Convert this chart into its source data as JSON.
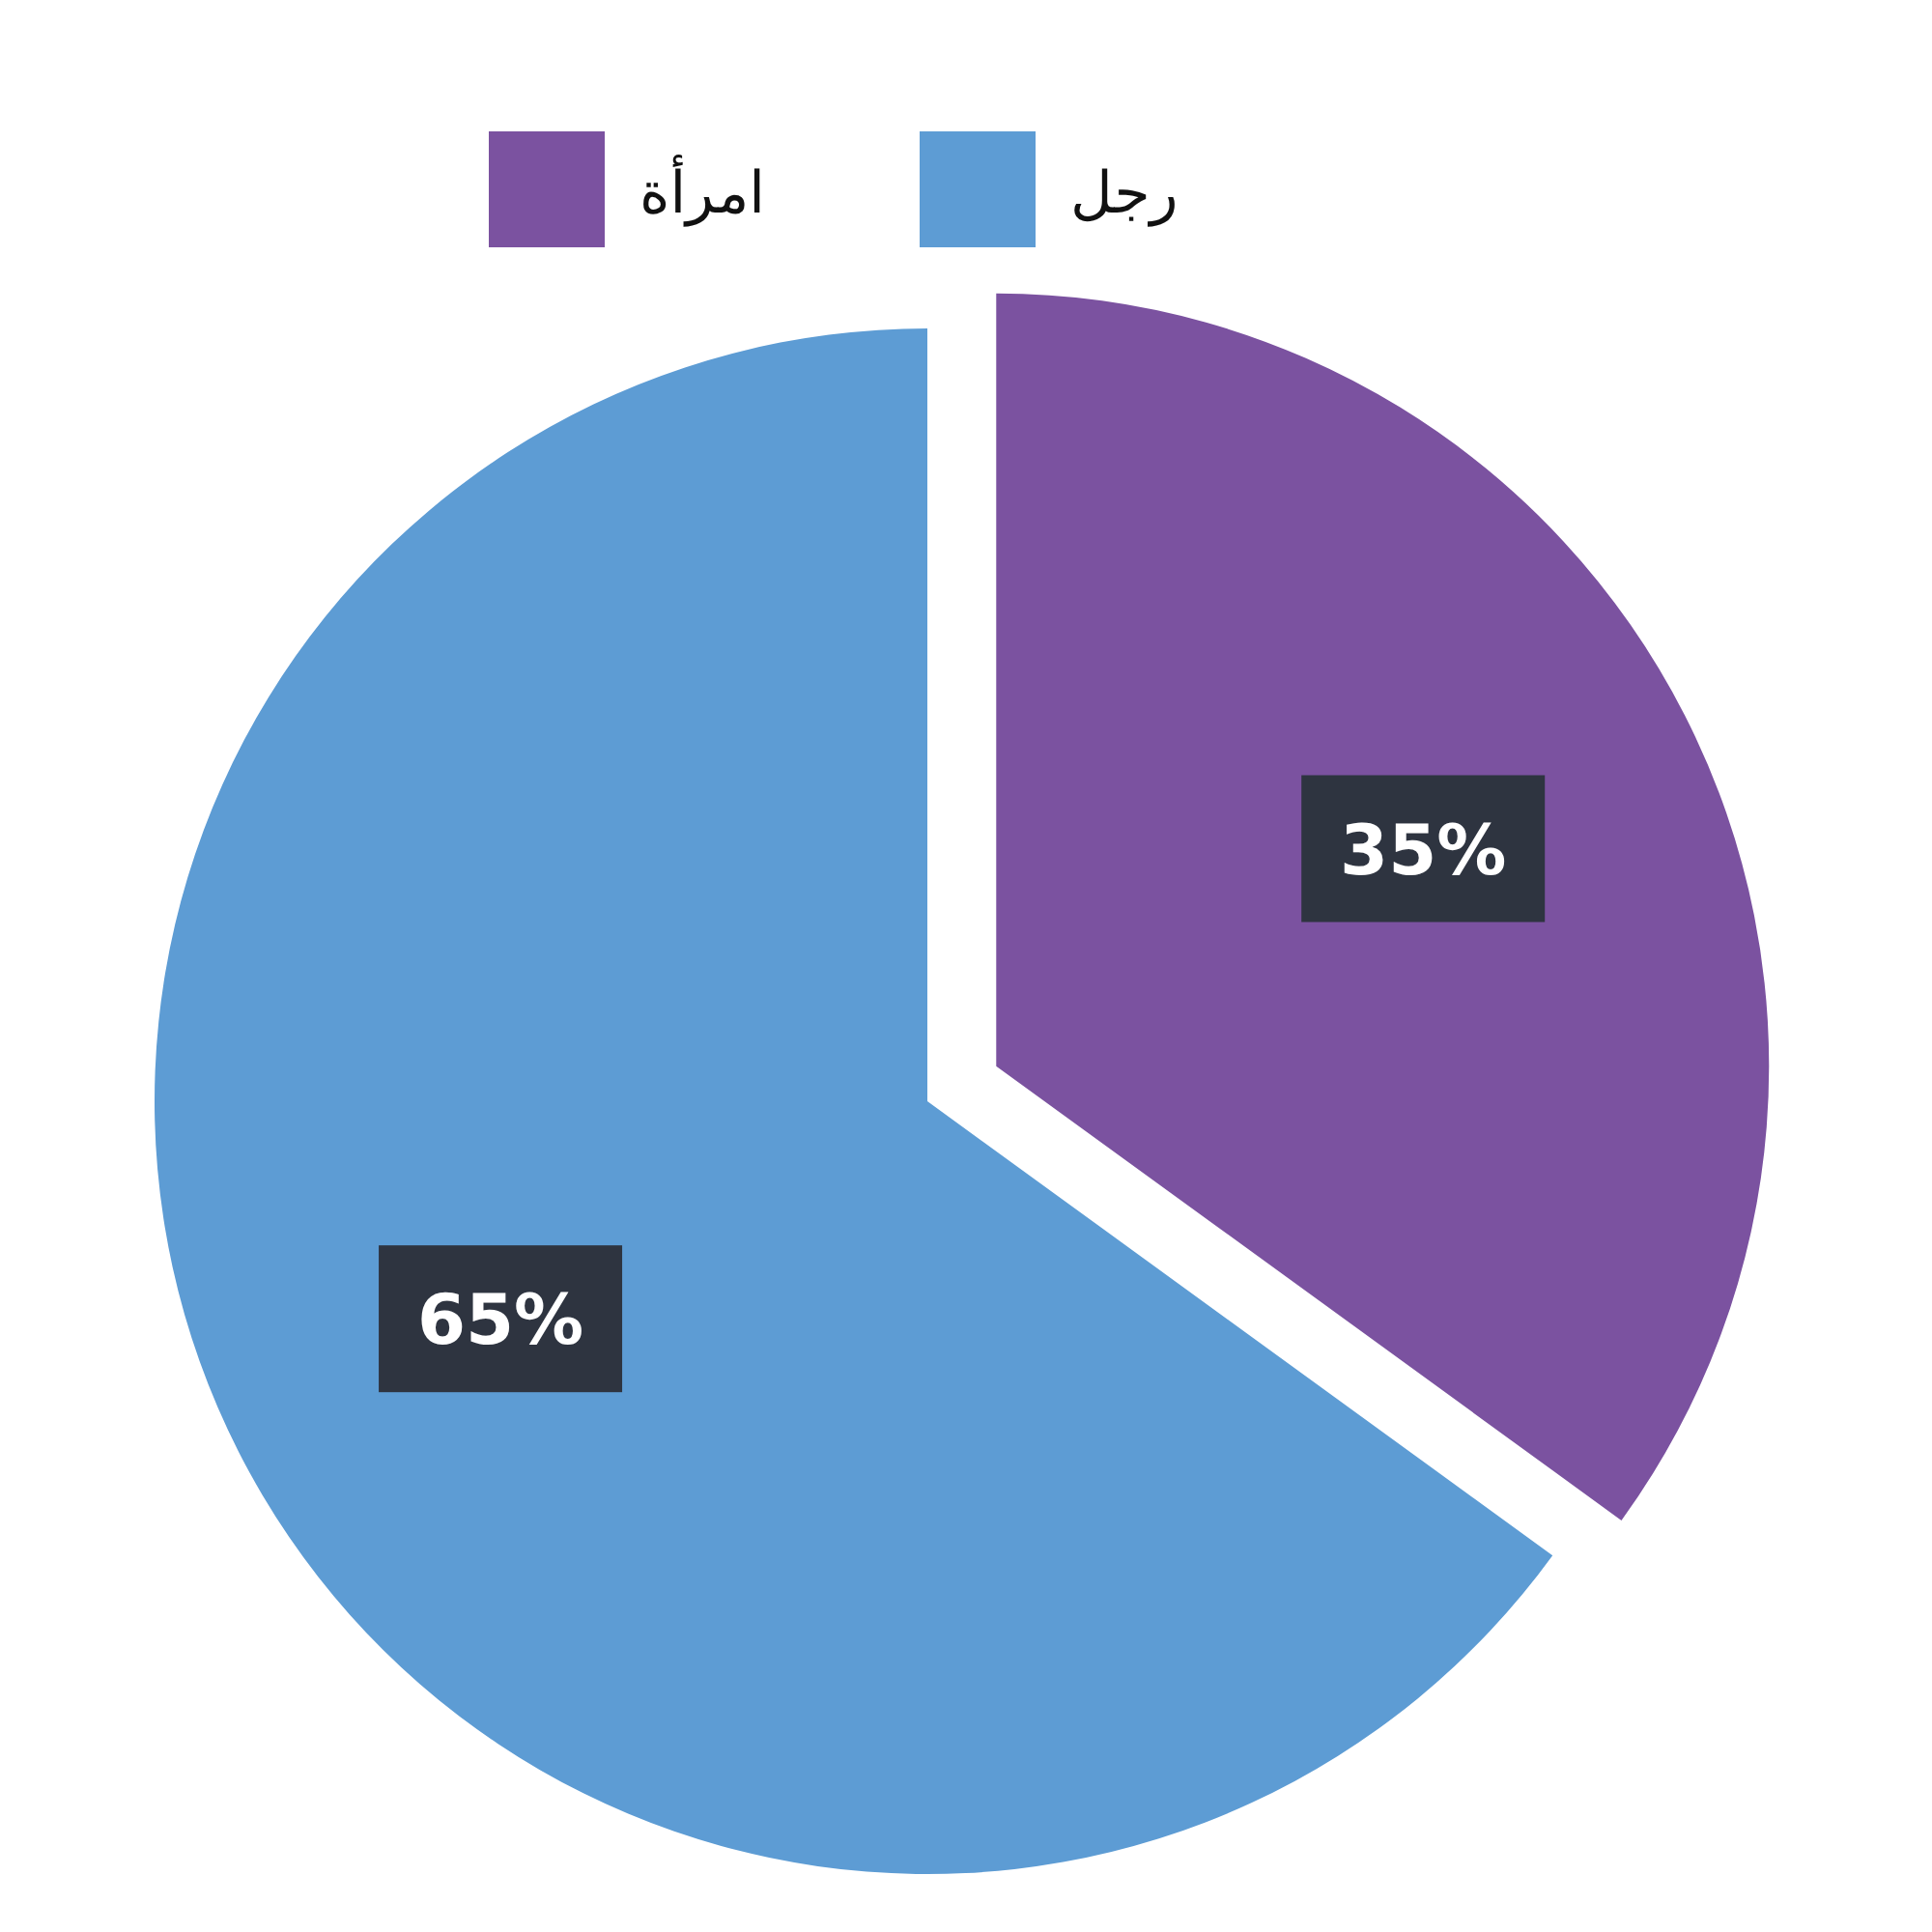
{
  "chart_data": {
    "type": "pie",
    "categories": [
      "امرأة",
      "رجل"
    ],
    "values": [
      35,
      65
    ],
    "colors": [
      "#7b52a0",
      "#5d9cd4"
    ],
    "value_labels": [
      "35%",
      "65%"
    ],
    "legend": "top"
  }
}
